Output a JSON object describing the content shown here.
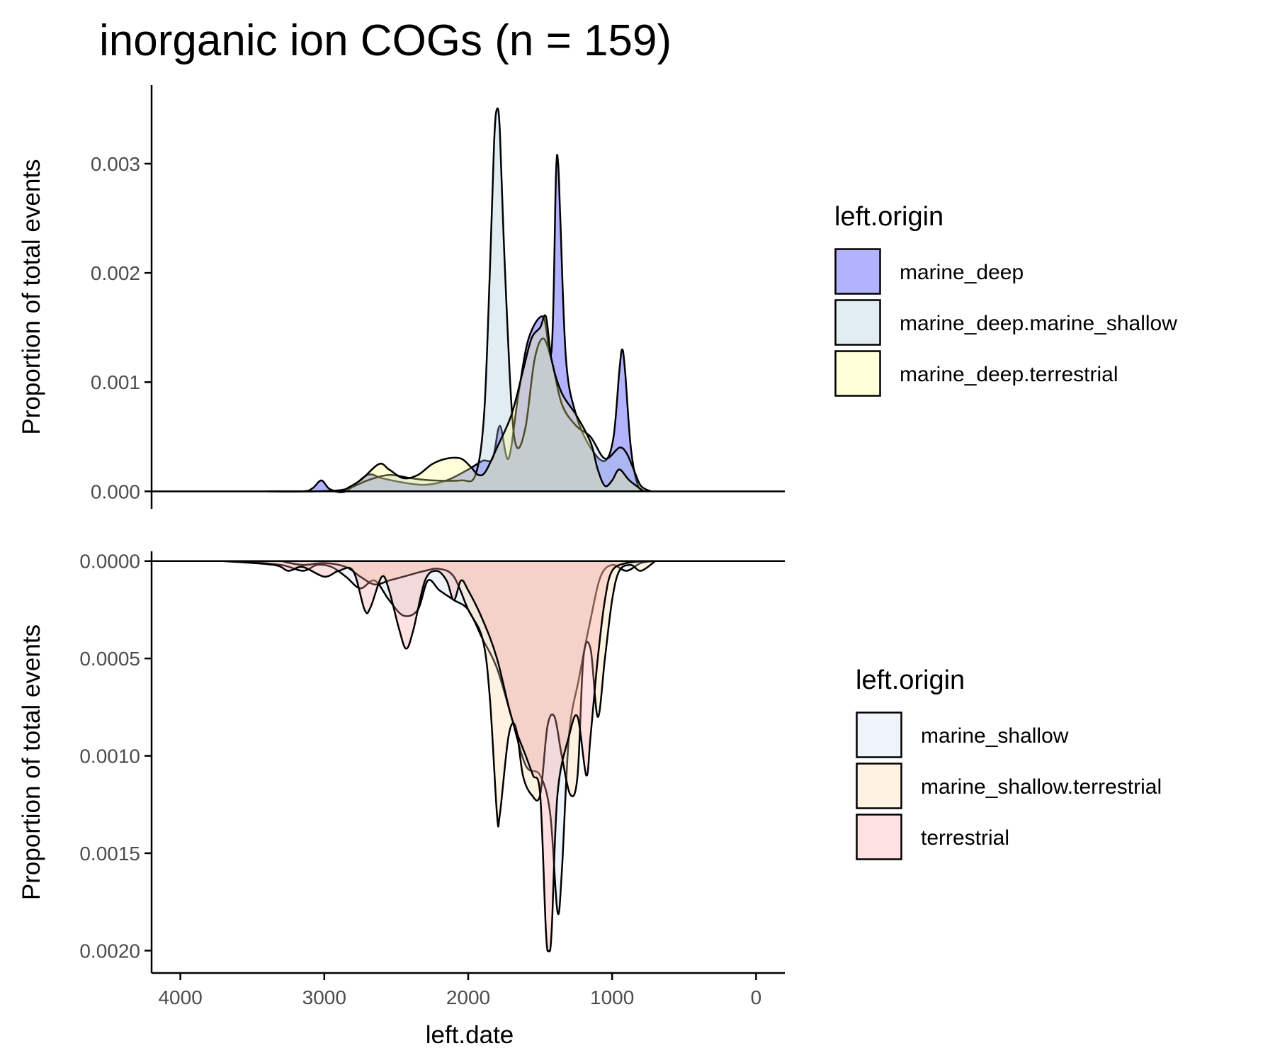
{
  "chart_data": {
    "type": "area",
    "title": "inorganic ion COGs (n = 159)",
    "xlabel": "left.date",
    "x_reversed": true,
    "xlim": [
      4200,
      -200
    ],
    "x_ticks": [
      4000,
      3000,
      2000,
      1000,
      0
    ],
    "x_tick_labels": [
      "4000",
      "3000",
      "2000",
      "1000",
      "0"
    ],
    "grid": false,
    "panels": [
      {
        "ylabel": "Proportion of total events",
        "ylim": [
          -0.00016,
          0.00372
        ],
        "y_ticks": [
          0,
          0.001,
          0.002,
          0.003
        ],
        "y_tick_labels": [
          "0.000",
          "0.001",
          "0.002",
          "0.003"
        ],
        "legend_title": "left.origin",
        "legend_position": "right",
        "series": [
          {
            "name": "marine_deep",
            "color": "#0000ff",
            "points": [
              [
                3400,
                0
              ],
              [
                3150,
                0
              ],
              [
                3080,
                3e-05
              ],
              [
                3020,
                0.0001
              ],
              [
                2960,
                2e-05
              ],
              [
                2850,
                0
              ],
              [
                2700,
                0.00015
              ],
              [
                2600,
                0.00012
              ],
              [
                2450,
                8e-05
              ],
              [
                2300,
                6e-05
              ],
              [
                2150,
                0.0001
              ],
              [
                2000,
                0.0002
              ],
              [
                1900,
                0.00028
              ],
              [
                1830,
                0.0003
              ],
              [
                1780,
                0.0006
              ],
              [
                1720,
                0.0003
              ],
              [
                1650,
                0.0009
              ],
              [
                1580,
                0.0014
              ],
              [
                1480,
                0.0016
              ],
              [
                1420,
                0.0013
              ],
              [
                1390,
                0.0029
              ],
              [
                1375,
                0.003
              ],
              [
                1360,
                0.0025
              ],
              [
                1320,
                0.0012
              ],
              [
                1250,
                0.0007
              ],
              [
                1150,
                0.0004
              ],
              [
                1050,
                0.00028
              ],
              [
                990,
                0.0005
              ],
              [
                950,
                0.0011
              ],
              [
                930,
                0.0013
              ],
              [
                910,
                0.0011
              ],
              [
                870,
                0.0004
              ],
              [
                820,
                5e-05
              ],
              [
                760,
                0
              ]
            ]
          },
          {
            "name": "marine_deep.marine_shallow",
            "color": "#9ebfd6",
            "points": [
              [
                3400,
                0
              ],
              [
                3050,
                0
              ],
              [
                2850,
                2e-05
              ],
              [
                2700,
                0.0001
              ],
              [
                2550,
                0.00015
              ],
              [
                2400,
                0.00012
              ],
              [
                2250,
                0.0001
              ],
              [
                2050,
                0.0001
              ],
              [
                1950,
                0.00015
              ],
              [
                1890,
                0.0007
              ],
              [
                1850,
                0.002
              ],
              [
                1820,
                0.0032
              ],
              [
                1800,
                0.0035
              ],
              [
                1780,
                0.0033
              ],
              [
                1750,
                0.0022
              ],
              [
                1700,
                0.0008
              ],
              [
                1660,
                0.0004
              ],
              [
                1600,
                0.0006
              ],
              [
                1540,
                0.0012
              ],
              [
                1480,
                0.0014
              ],
              [
                1420,
                0.0012
              ],
              [
                1350,
                0.0008
              ],
              [
                1250,
                0.0006
              ],
              [
                1150,
                0.0005
              ],
              [
                1050,
                0.0003
              ],
              [
                950,
                0.0004
              ],
              [
                900,
                0.00035
              ],
              [
                850,
                0.0002
              ],
              [
                800,
                5e-05
              ],
              [
                730,
                0
              ]
            ]
          },
          {
            "name": "marine_deep.terrestrial",
            "color": "#ffff80",
            "points": [
              [
                2880,
                0
              ],
              [
                2750,
                0.0001
              ],
              [
                2620,
                0.00025
              ],
              [
                2550,
                0.0002
              ],
              [
                2450,
                0.00012
              ],
              [
                2350,
                0.00015
              ],
              [
                2250,
                0.00025
              ],
              [
                2150,
                0.0003
              ],
              [
                2050,
                0.0003
              ],
              [
                1980,
                0.00022
              ],
              [
                1930,
                0.00015
              ],
              [
                1880,
                0.00018
              ],
              [
                1800,
                0.0004
              ],
              [
                1700,
                0.0007
              ],
              [
                1620,
                0.0011
              ],
              [
                1560,
                0.0014
              ],
              [
                1500,
                0.0015
              ],
              [
                1460,
                0.0016
              ],
              [
                1420,
                0.0012
              ],
              [
                1350,
                0.0009
              ],
              [
                1250,
                0.0007
              ],
              [
                1150,
                0.00045
              ],
              [
                1100,
                0.0002
              ],
              [
                1050,
                5e-05
              ],
              [
                1000,
                0.0001
              ],
              [
                950,
                0.0002
              ],
              [
                880,
                0.0001
              ],
              [
                780,
                0
              ]
            ]
          }
        ]
      },
      {
        "ylabel": "Proportion of total events",
        "ylim": [
          -5e-05,
          0.002115
        ],
        "y_inverted": true,
        "y_ticks": [
          0,
          0.0005,
          0.001,
          0.0015,
          0.002
        ],
        "y_tick_labels": [
          "0.0000",
          "0.0005",
          "0.0010",
          "0.0015",
          "0.0020"
        ],
        "legend_title": "left.origin",
        "legend_position": "right",
        "series": [
          {
            "name": "marine_shallow",
            "color": "#c6dbef",
            "points": [
              [
                3600,
                0
              ],
              [
                3300,
                2e-05
              ],
              [
                3150,
                5e-05
              ],
              [
                3050,
                2e-05
              ],
              [
                2950,
                3e-05
              ],
              [
                2850,
                8e-05
              ],
              [
                2750,
                0.00014
              ],
              [
                2650,
                0.0001
              ],
              [
                2550,
                0.0002
              ],
              [
                2450,
                0.00028
              ],
              [
                2350,
                0.00025
              ],
              [
                2280,
                0.0001
              ],
              [
                2200,
                0.00015
              ],
              [
                2100,
                0.0002
              ],
              [
                2000,
                0.00025
              ],
              [
                1900,
                0.0004
              ],
              [
                1800,
                0.00055
              ],
              [
                1700,
                0.0008
              ],
              [
                1600,
                0.00105
              ],
              [
                1500,
                0.0011
              ],
              [
                1430,
                0.0013
              ],
              [
                1380,
                0.0018
              ],
              [
                1350,
                0.0016
              ],
              [
                1300,
                0.0009
              ],
              [
                1230,
                0.0006
              ],
              [
                1150,
                0.0003
              ],
              [
                1080,
                8e-05
              ],
              [
                1000,
                2e-05
              ],
              [
                900,
                5e-05
              ],
              [
                800,
                1e-05
              ],
              [
                700,
                0
              ]
            ]
          },
          {
            "name": "marine_shallow.terrestrial",
            "color": "#fdd49e",
            "points": [
              [
                3300,
                0
              ],
              [
                3150,
                2e-05
              ],
              [
                3000,
                1e-05
              ],
              [
                2850,
                3e-05
              ],
              [
                2750,
                8e-05
              ],
              [
                2650,
                0.00012
              ],
              [
                2550,
                0.0001
              ],
              [
                2450,
                8e-05
              ],
              [
                2300,
                5e-05
              ],
              [
                2200,
                4e-05
              ],
              [
                2100,
                8e-05
              ],
              [
                2000,
                0.00025
              ],
              [
                1900,
                0.0004
              ],
              [
                1850,
                0.0007
              ],
              [
                1800,
                0.0013
              ],
              [
                1780,
                0.0013
              ],
              [
                1720,
                0.0009
              ],
              [
                1670,
                0.00085
              ],
              [
                1620,
                0.0011
              ],
              [
                1560,
                0.0012
              ],
              [
                1500,
                0.0012
              ],
              [
                1450,
                0.00085
              ],
              [
                1400,
                0.0008
              ],
              [
                1350,
                0.001
              ],
              [
                1290,
                0.0012
              ],
              [
                1240,
                0.0011
              ],
              [
                1200,
                0.0005
              ],
              [
                1150,
                0.00045
              ],
              [
                1100,
                0.0008
              ],
              [
                1050,
                0.0005
              ],
              [
                1000,
                0.0002
              ],
              [
                950,
                5e-05
              ],
              [
                870,
                2e-05
              ],
              [
                800,
                5e-05
              ],
              [
                700,
                0
              ]
            ]
          },
          {
            "name": "terrestrial",
            "color": "#fb9a99",
            "points": [
              [
                3700,
                0
              ],
              [
                3350,
                2e-05
              ],
              [
                3250,
                5e-05
              ],
              [
                3150,
                3e-05
              ],
              [
                3000,
                8e-05
              ],
              [
                2900,
                5e-05
              ],
              [
                2800,
                5e-05
              ],
              [
                2720,
                0.00025
              ],
              [
                2680,
                0.00024
              ],
              [
                2600,
                8e-05
              ],
              [
                2550,
                0.00015
              ],
              [
                2480,
                0.00035
              ],
              [
                2430,
                0.00045
              ],
              [
                2380,
                0.00035
              ],
              [
                2300,
                0.0001
              ],
              [
                2220,
                5e-05
              ],
              [
                2150,
                0.0001
              ],
              [
                2100,
                0.0002
              ],
              [
                2050,
                0.0001
              ],
              [
                2000,
                0.00015
              ],
              [
                1900,
                0.0003
              ],
              [
                1800,
                0.0005
              ],
              [
                1700,
                0.0008
              ],
              [
                1600,
                0.001
              ],
              [
                1550,
                0.0011
              ],
              [
                1500,
                0.0012
              ],
              [
                1460,
                0.0019
              ],
              [
                1440,
                0.002
              ],
              [
                1420,
                0.0019
              ],
              [
                1380,
                0.0012
              ],
              [
                1300,
                0.0009
              ],
              [
                1240,
                0.0008
              ],
              [
                1180,
                0.0011
              ],
              [
                1150,
                0.0009
              ],
              [
                1100,
                0.0005
              ],
              [
                1050,
                0.0002
              ],
              [
                1000,
                5e-05
              ],
              [
                900,
                1e-05
              ],
              [
                750,
                0
              ]
            ]
          }
        ]
      }
    ]
  }
}
